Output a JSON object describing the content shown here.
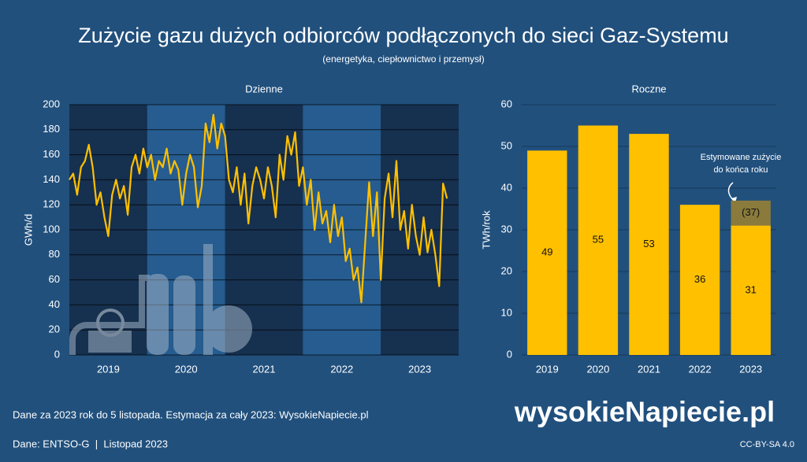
{
  "title": "Zużycie gazu dużych odbiorców podłączonych do sieci Gaz-Systemu",
  "subtitle": "(energetyka, ciepłownictwo i przemysł)",
  "note": "Dane za 2023 rok do 5 listopada. Estymacja za cały 2023: WysokieNapiecie.pl",
  "source": "Dane: ENTSO-G  |  Listopad 2023",
  "logo": "wysokieNapiecie.pl",
  "license": "CC-BY-SA 4.0",
  "chart_data": [
    {
      "type": "line",
      "title": "Dzienne",
      "ylabel": "GWh/d",
      "color": "#ffc000",
      "x": [
        2019.0,
        2019.05,
        2019.1,
        2019.15,
        2019.2,
        2019.25,
        2019.3,
        2019.35,
        2019.4,
        2019.45,
        2019.5,
        2019.55,
        2019.6,
        2019.65,
        2019.7,
        2019.75,
        2019.8,
        2019.85,
        2019.9,
        2019.95,
        2020.0,
        2020.05,
        2020.1,
        2020.15,
        2020.2,
        2020.25,
        2020.3,
        2020.35,
        2020.4,
        2020.45,
        2020.5,
        2020.55,
        2020.6,
        2020.65,
        2020.7,
        2020.75,
        2020.8,
        2020.85,
        2020.9,
        2020.95,
        2021.0,
        2021.05,
        2021.1,
        2021.15,
        2021.2,
        2021.25,
        2021.3,
        2021.35,
        2021.4,
        2021.45,
        2021.5,
        2021.55,
        2021.6,
        2021.65,
        2021.7,
        2021.75,
        2021.8,
        2021.85,
        2021.9,
        2021.95,
        2022.0,
        2022.05,
        2022.1,
        2022.15,
        2022.2,
        2022.25,
        2022.3,
        2022.35,
        2022.4,
        2022.45,
        2022.5,
        2022.55,
        2022.6,
        2022.65,
        2022.7,
        2022.75,
        2022.8,
        2022.85,
        2022.9,
        2022.95,
        2023.0,
        2023.05,
        2023.1,
        2023.15,
        2023.2,
        2023.25,
        2023.3,
        2023.35,
        2023.4,
        2023.45,
        2023.5,
        2023.55,
        2023.6,
        2023.65,
        2023.7,
        2023.75,
        2023.8,
        2023.85
      ],
      "values": [
        140,
        145,
        128,
        150,
        155,
        168,
        150,
        120,
        130,
        110,
        95,
        128,
        140,
        125,
        135,
        112,
        150,
        160,
        145,
        165,
        150,
        160,
        140,
        155,
        150,
        165,
        145,
        155,
        148,
        120,
        145,
        160,
        150,
        118,
        135,
        185,
        170,
        192,
        165,
        185,
        175,
        140,
        130,
        150,
        120,
        145,
        105,
        135,
        150,
        140,
        125,
        150,
        135,
        110,
        160,
        140,
        175,
        160,
        178,
        135,
        150,
        120,
        140,
        100,
        130,
        105,
        115,
        90,
        120,
        95,
        110,
        75,
        85,
        60,
        70,
        42,
        90,
        138,
        95,
        130,
        60,
        125,
        145,
        110,
        155,
        100,
        115,
        85,
        120,
        95,
        80,
        110,
        82,
        100,
        80,
        55,
        137,
        125
      ],
      "xlim": [
        2019,
        2024
      ],
      "xticks": [
        {
          "value": 2019.5,
          "label": "2019"
        },
        {
          "value": 2020.5,
          "label": "2020"
        },
        {
          "value": 2021.5,
          "label": "2021"
        },
        {
          "value": 2022.5,
          "label": "2022"
        },
        {
          "value": 2023.5,
          "label": "2023"
        }
      ],
      "ylim": [
        0,
        200
      ],
      "yticks": [
        0,
        20,
        40,
        60,
        80,
        100,
        120,
        140,
        160,
        180,
        200
      ],
      "grid": true,
      "band_colors": [
        "#16304f",
        "#265c8f"
      ]
    },
    {
      "type": "bar",
      "title": "Roczne",
      "ylabel": "TWh/rok",
      "categories": [
        "2019",
        "2020",
        "2021",
        "2022",
        "2023"
      ],
      "series": [
        {
          "values": [
            49,
            55,
            53,
            36,
            31
          ],
          "color": "#ffc000"
        },
        {
          "values": [
            null,
            null,
            null,
            null,
            37
          ],
          "value_labels": [
            null,
            null,
            null,
            null,
            "(37)"
          ],
          "color": "#8a7b3c"
        }
      ],
      "ylim": [
        0,
        60
      ],
      "yticks": [
        0,
        10,
        20,
        30,
        40,
        50,
        60
      ],
      "grid": true,
      "annotation": [
        "Estymowane zużycie",
        "do końca roku"
      ]
    }
  ]
}
